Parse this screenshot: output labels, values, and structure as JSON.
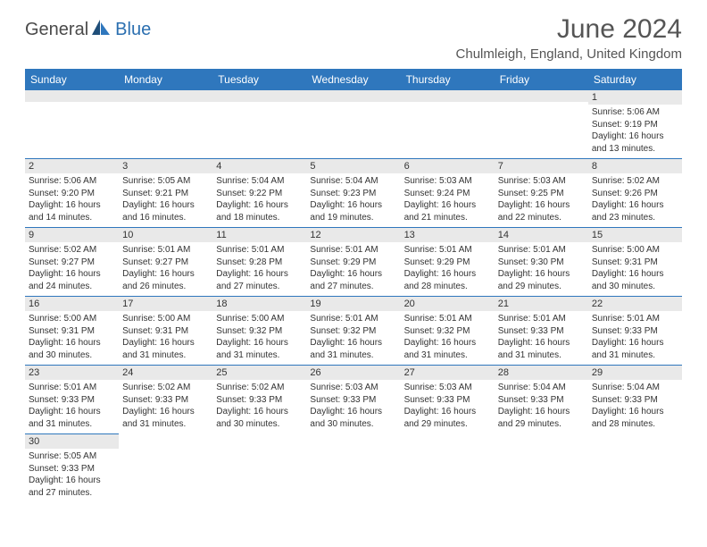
{
  "logo": {
    "part1": "General",
    "part2": "Blue"
  },
  "title": {
    "month": "June 2024",
    "location": "Chulmleigh, England, United Kingdom"
  },
  "dayHeaders": [
    "Sunday",
    "Monday",
    "Tuesday",
    "Wednesday",
    "Thursday",
    "Friday",
    "Saturday"
  ],
  "colors": {
    "headerBg": "#2f77bd",
    "headerText": "#ffffff",
    "dayNumBg": "#e9e9e9",
    "border": "#2f77bd",
    "textColor": "#333333",
    "logoGray": "#4a4a4a",
    "logoBlue": "#2b6fb0"
  },
  "weeks": [
    [
      null,
      null,
      null,
      null,
      null,
      null,
      {
        "n": "1",
        "sr": "5:06 AM",
        "ss": "9:19 PM",
        "dl": "16 hours and 13 minutes."
      }
    ],
    [
      {
        "n": "2",
        "sr": "5:06 AM",
        "ss": "9:20 PM",
        "dl": "16 hours and 14 minutes."
      },
      {
        "n": "3",
        "sr": "5:05 AM",
        "ss": "9:21 PM",
        "dl": "16 hours and 16 minutes."
      },
      {
        "n": "4",
        "sr": "5:04 AM",
        "ss": "9:22 PM",
        "dl": "16 hours and 18 minutes."
      },
      {
        "n": "5",
        "sr": "5:04 AM",
        "ss": "9:23 PM",
        "dl": "16 hours and 19 minutes."
      },
      {
        "n": "6",
        "sr": "5:03 AM",
        "ss": "9:24 PM",
        "dl": "16 hours and 21 minutes."
      },
      {
        "n": "7",
        "sr": "5:03 AM",
        "ss": "9:25 PM",
        "dl": "16 hours and 22 minutes."
      },
      {
        "n": "8",
        "sr": "5:02 AM",
        "ss": "9:26 PM",
        "dl": "16 hours and 23 minutes."
      }
    ],
    [
      {
        "n": "9",
        "sr": "5:02 AM",
        "ss": "9:27 PM",
        "dl": "16 hours and 24 minutes."
      },
      {
        "n": "10",
        "sr": "5:01 AM",
        "ss": "9:27 PM",
        "dl": "16 hours and 26 minutes."
      },
      {
        "n": "11",
        "sr": "5:01 AM",
        "ss": "9:28 PM",
        "dl": "16 hours and 27 minutes."
      },
      {
        "n": "12",
        "sr": "5:01 AM",
        "ss": "9:29 PM",
        "dl": "16 hours and 27 minutes."
      },
      {
        "n": "13",
        "sr": "5:01 AM",
        "ss": "9:29 PM",
        "dl": "16 hours and 28 minutes."
      },
      {
        "n": "14",
        "sr": "5:01 AM",
        "ss": "9:30 PM",
        "dl": "16 hours and 29 minutes."
      },
      {
        "n": "15",
        "sr": "5:00 AM",
        "ss": "9:31 PM",
        "dl": "16 hours and 30 minutes."
      }
    ],
    [
      {
        "n": "16",
        "sr": "5:00 AM",
        "ss": "9:31 PM",
        "dl": "16 hours and 30 minutes."
      },
      {
        "n": "17",
        "sr": "5:00 AM",
        "ss": "9:31 PM",
        "dl": "16 hours and 31 minutes."
      },
      {
        "n": "18",
        "sr": "5:00 AM",
        "ss": "9:32 PM",
        "dl": "16 hours and 31 minutes."
      },
      {
        "n": "19",
        "sr": "5:01 AM",
        "ss": "9:32 PM",
        "dl": "16 hours and 31 minutes."
      },
      {
        "n": "20",
        "sr": "5:01 AM",
        "ss": "9:32 PM",
        "dl": "16 hours and 31 minutes."
      },
      {
        "n": "21",
        "sr": "5:01 AM",
        "ss": "9:33 PM",
        "dl": "16 hours and 31 minutes."
      },
      {
        "n": "22",
        "sr": "5:01 AM",
        "ss": "9:33 PM",
        "dl": "16 hours and 31 minutes."
      }
    ],
    [
      {
        "n": "23",
        "sr": "5:01 AM",
        "ss": "9:33 PM",
        "dl": "16 hours and 31 minutes."
      },
      {
        "n": "24",
        "sr": "5:02 AM",
        "ss": "9:33 PM",
        "dl": "16 hours and 31 minutes."
      },
      {
        "n": "25",
        "sr": "5:02 AM",
        "ss": "9:33 PM",
        "dl": "16 hours and 30 minutes."
      },
      {
        "n": "26",
        "sr": "5:03 AM",
        "ss": "9:33 PM",
        "dl": "16 hours and 30 minutes."
      },
      {
        "n": "27",
        "sr": "5:03 AM",
        "ss": "9:33 PM",
        "dl": "16 hours and 29 minutes."
      },
      {
        "n": "28",
        "sr": "5:04 AM",
        "ss": "9:33 PM",
        "dl": "16 hours and 29 minutes."
      },
      {
        "n": "29",
        "sr": "5:04 AM",
        "ss": "9:33 PM",
        "dl": "16 hours and 28 minutes."
      }
    ],
    [
      {
        "n": "30",
        "sr": "5:05 AM",
        "ss": "9:33 PM",
        "dl": "16 hours and 27 minutes."
      },
      null,
      null,
      null,
      null,
      null,
      null
    ]
  ]
}
